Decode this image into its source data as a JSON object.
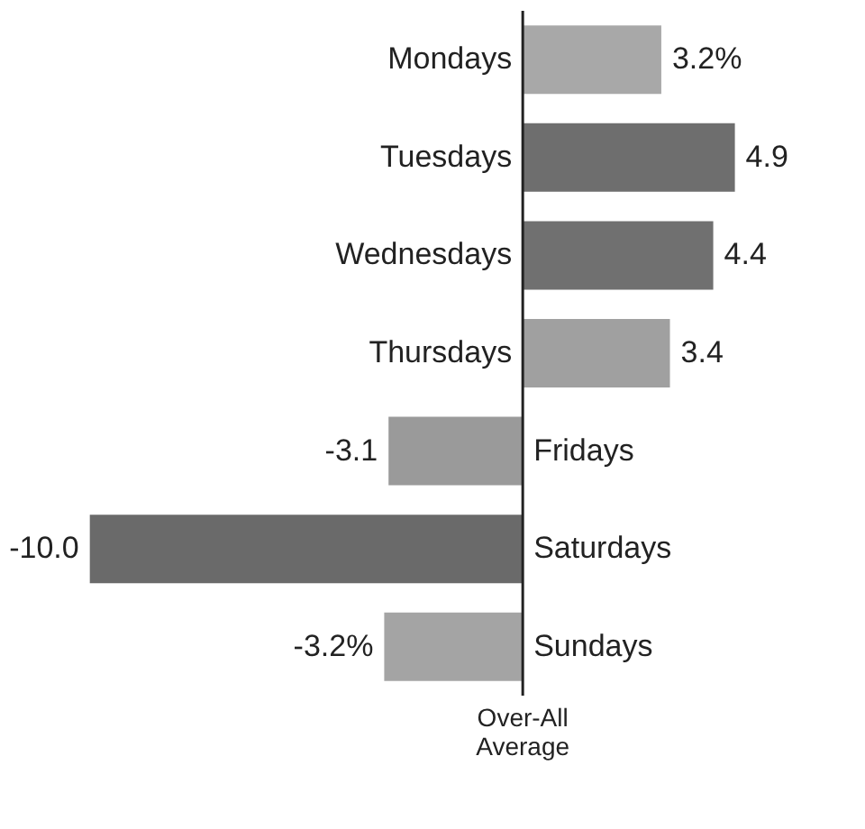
{
  "chart_data": {
    "type": "bar",
    "orientation": "horizontal",
    "xlabel": "Over-All Average",
    "categories": [
      "Mondays",
      "Tuesdays",
      "Wednesdays",
      "Thursdays",
      "Fridays",
      "Saturdays",
      "Sundays"
    ],
    "values": [
      3.2,
      4.9,
      4.4,
      3.4,
      -3.1,
      -10.0,
      -3.2
    ],
    "value_labels": [
      "3.2%",
      "4.9",
      "4.4",
      "3.4",
      "-3.1",
      "-10.0",
      "-3.2%"
    ],
    "colors": [
      "#a8a8a8",
      "#6e6e6e",
      "#707070",
      "#a0a0a0",
      "#9a9a9a",
      "#6a6a6a",
      "#a4a4a4"
    ]
  }
}
